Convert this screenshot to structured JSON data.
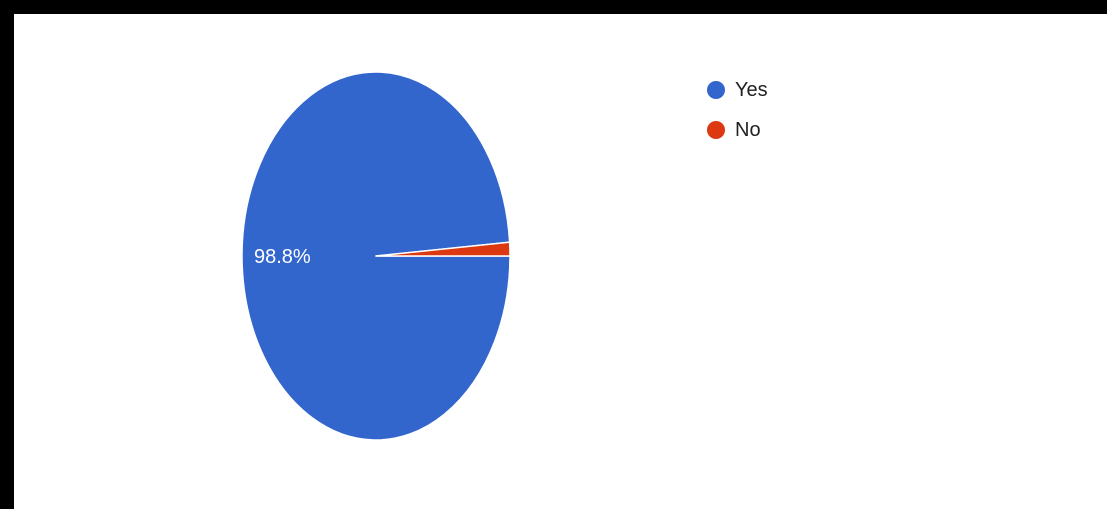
{
  "chart_data": {
    "type": "pie",
    "categories": [
      "Yes",
      "No"
    ],
    "values": [
      98.8,
      1.2
    ],
    "colors": [
      "#3366cc",
      "#dc3912"
    ],
    "data_labels": [
      "98.8%",
      ""
    ],
    "legend_position": "top-right",
    "start_angle_deg": 90,
    "direction": "clockwise"
  }
}
